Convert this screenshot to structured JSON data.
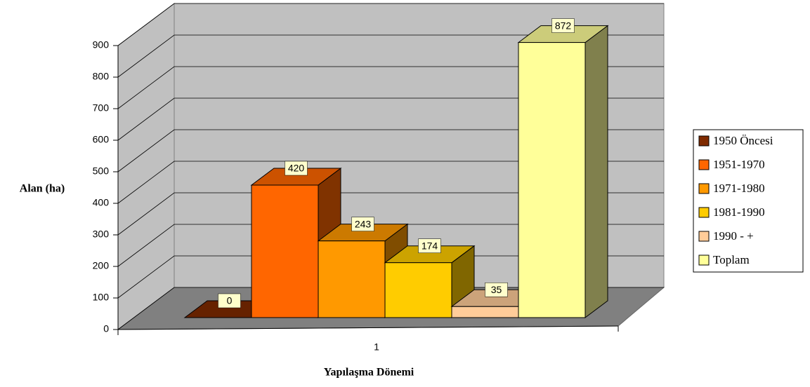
{
  "chart_data": {
    "type": "bar3d",
    "x_label": "Yapılaşma Dönemi",
    "y_label": "Alan (ha)",
    "categories": [
      "1"
    ],
    "series": [
      {
        "name": "1950 Öncesi",
        "color": "#7f2a00",
        "values": [
          0
        ]
      },
      {
        "name": "1951-1970",
        "color": "#ff6600",
        "values": [
          420
        ]
      },
      {
        "name": "1971-1980",
        "color": "#ff9900",
        "values": [
          243
        ]
      },
      {
        "name": "1981-1990",
        "color": "#ffcc00",
        "values": [
          174
        ]
      },
      {
        "name": "1990 - +",
        "color": "#ffcc99",
        "values": [
          35
        ]
      },
      {
        "name": "Toplam",
        "color": "#ffff99",
        "values": [
          872
        ]
      }
    ],
    "ylim": [
      0,
      900
    ],
    "yticks": [
      0,
      100,
      200,
      300,
      400,
      500,
      600,
      700,
      800,
      900
    ],
    "grid": true,
    "legend": "right"
  }
}
